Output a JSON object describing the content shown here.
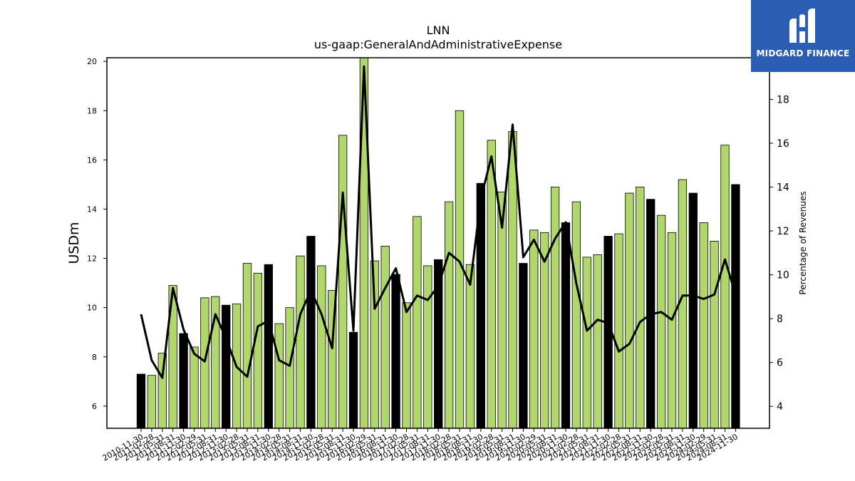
{
  "brand": {
    "name": "MIDGARD FINANCE",
    "bg_color": "#2b5eb3"
  },
  "chart_data": {
    "type": "bar",
    "title": "LNN",
    "subtitle": "us-gaap:GeneralAndAdministrativeExpense",
    "ylabel": "USDm",
    "y2label": "Percentage of Revenues",
    "ylim": [
      5.1,
      20.15
    ],
    "y2lim": [
      3.0,
      19.9
    ],
    "yticks": [
      6,
      8,
      10,
      12,
      14,
      16,
      18,
      20
    ],
    "y2ticks": [
      4,
      6,
      8,
      10,
      12,
      14,
      16,
      18
    ],
    "colors": {
      "annual": "#000000",
      "quarter": "#b0d76b",
      "line": "#000000"
    },
    "categories": [
      "2010-11-30",
      "2011-02-28",
      "2011-05-31",
      "2011-08-31",
      "2011-11-30",
      "2012-02-29",
      "2012-05-31",
      "2012-08-31",
      "2012-11-30",
      "2013-02-28",
      "2013-05-31",
      "2013-08-31",
      "2013-11-30",
      "2014-02-28",
      "2014-05-31",
      "2014-08-31",
      "2014-11-30",
      "2015-02-28",
      "2015-05-31",
      "2015-08-31",
      "2015-11-30",
      "2016-02-29",
      "2016-05-31",
      "2016-08-31",
      "2016-11-30",
      "2017-02-28",
      "2017-05-31",
      "2017-08-31",
      "2017-11-30",
      "2018-02-28",
      "2018-05-31",
      "2018-08-31",
      "2018-11-30",
      "2019-02-28",
      "2019-05-31",
      "2019-08-31",
      "2019-11-30",
      "2020-02-29",
      "2020-05-31",
      "2020-08-31",
      "2020-11-30",
      "2021-02-28",
      "2021-05-31",
      "2021-08-31",
      "2021-11-30",
      "2022-02-28",
      "2022-05-31",
      "2022-08-31",
      "2022-11-30",
      "2023-02-28",
      "2023-05-31",
      "2023-08-31",
      "2023-11-30",
      "2024-02-29",
      "2024-05-31",
      "2024-08-31",
      "2024-11-30"
    ],
    "series": [
      {
        "role": "bars",
        "values": [
          7.3,
          7.25,
          8.15,
          10.9,
          8.95,
          8.4,
          10.4,
          10.45,
          10.1,
          10.15,
          11.8,
          11.4,
          11.75,
          9.35,
          10.0,
          12.1,
          12.9,
          11.7,
          10.7,
          17.0,
          9.0,
          20.3,
          11.9,
          12.5,
          11.35,
          10.2,
          13.7,
          11.7,
          11.95,
          14.3,
          18.0,
          11.75,
          15.05,
          16.8,
          14.7,
          17.15,
          11.8,
          13.15,
          13.05,
          14.9,
          13.45,
          14.3,
          12.05,
          12.15,
          12.9,
          13.0,
          14.65,
          14.9,
          14.4,
          13.75,
          13.05,
          15.2,
          14.65,
          13.45,
          12.7,
          16.6,
          15.0
        ],
        "is_annual": [
          true,
          false,
          false,
          false,
          true,
          false,
          false,
          false,
          true,
          false,
          false,
          false,
          true,
          false,
          false,
          false,
          true,
          false,
          false,
          false,
          true,
          false,
          false,
          false,
          true,
          false,
          false,
          false,
          true,
          false,
          false,
          false,
          true,
          false,
          false,
          false,
          true,
          false,
          false,
          false,
          true,
          false,
          false,
          false,
          true,
          false,
          false,
          false,
          true,
          false,
          false,
          false,
          true,
          false,
          false,
          false,
          true
        ]
      },
      {
        "role": "line",
        "values": [
          8.2,
          6.1,
          5.3,
          9.4,
          7.5,
          6.4,
          6.05,
          8.2,
          7.1,
          5.8,
          5.35,
          7.65,
          7.9,
          6.1,
          5.85,
          8.2,
          9.3,
          8.2,
          6.65,
          13.75,
          7.45,
          19.5,
          8.45,
          9.4,
          10.3,
          8.3,
          9.05,
          8.85,
          9.5,
          11.0,
          10.6,
          9.55,
          13.45,
          15.4,
          12.15,
          16.85,
          10.8,
          11.6,
          10.6,
          11.65,
          12.4,
          9.6,
          7.45,
          7.95,
          7.8,
          6.5,
          6.85,
          7.85,
          8.2,
          8.3,
          7.95,
          9.05,
          9.05,
          8.9,
          9.1,
          10.7,
          9.1
        ]
      }
    ]
  }
}
